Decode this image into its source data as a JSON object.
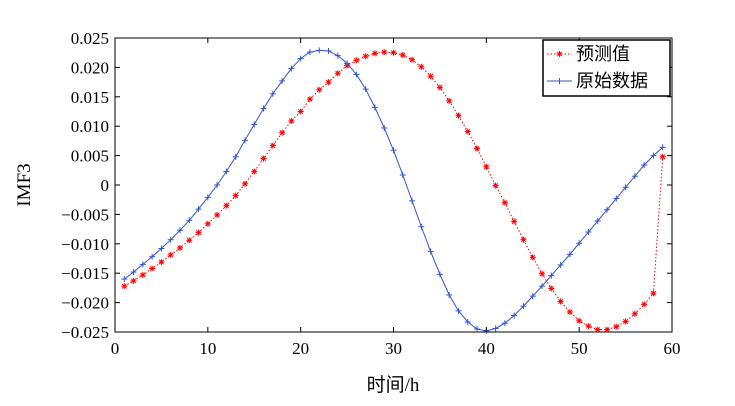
{
  "chart_data": {
    "type": "line",
    "xlabel": "时间/h",
    "ylabel": "IMF3",
    "xlim": [
      0,
      60
    ],
    "ylim": [
      -0.025,
      0.025
    ],
    "xticks": [
      0,
      10,
      20,
      30,
      40,
      50,
      60
    ],
    "xtick_labels": [
      "0",
      "10",
      "20",
      "30",
      "40",
      "50",
      "60"
    ],
    "yticks": [
      0.025,
      0.02,
      0.015,
      0.01,
      0.005,
      0,
      -0.005,
      -0.01,
      -0.015,
      -0.02,
      -0.025
    ],
    "ytick_labels": [
      "0.025",
      "0.020",
      "0.015",
      "0.010",
      "0.005",
      "0",
      "−0.005",
      "−0.010",
      "−0.015",
      "−0.020",
      "−0.025"
    ],
    "legend_position": "top-right",
    "grid": false,
    "series": [
      {
        "name": "预测值",
        "color": "#ff0000",
        "line_style": "dotted",
        "marker": "asterisk",
        "x": [
          1,
          2,
          3,
          4,
          5,
          6,
          7,
          8,
          9,
          10,
          11,
          12,
          13,
          14,
          15,
          16,
          17,
          18,
          19,
          20,
          21,
          22,
          23,
          24,
          25,
          26,
          27,
          28,
          29,
          30,
          31,
          32,
          33,
          34,
          35,
          36,
          37,
          38,
          39,
          40,
          41,
          42,
          43,
          44,
          45,
          46,
          47,
          48,
          49,
          50,
          51,
          52,
          53,
          54,
          55,
          56,
          57,
          58,
          59
        ],
        "values": [
          -0.0172,
          -0.0163,
          -0.0153,
          -0.0142,
          -0.0131,
          -0.0119,
          -0.0107,
          -0.0094,
          -0.0081,
          -0.0066,
          -0.0051,
          -0.0035,
          -0.0018,
          0.0002,
          0.0023,
          0.0045,
          0.0067,
          0.0089,
          0.0109,
          0.0125,
          0.0146,
          0.0162,
          0.0175,
          0.019,
          0.0203,
          0.0212,
          0.0219,
          0.0224,
          0.0226,
          0.0225,
          0.0221,
          0.0213,
          0.0201,
          0.0185,
          0.0166,
          0.0143,
          0.0118,
          0.0091,
          0.0062,
          0.0031,
          -0.0001,
          -0.003,
          -0.0062,
          -0.0093,
          -0.0123,
          -0.0151,
          -0.0176,
          -0.0198,
          -0.0216,
          -0.0231,
          -0.024,
          -0.0246,
          -0.0246,
          -0.0241,
          -0.0232,
          -0.0219,
          -0.0203,
          -0.0184,
          0.0048
        ]
      },
      {
        "name": "原始数据",
        "color": "#3355cc",
        "line_style": "solid",
        "marker": "plus",
        "x": [
          1,
          2,
          3,
          4,
          5,
          6,
          7,
          8,
          9,
          10,
          11,
          12,
          13,
          14,
          15,
          16,
          17,
          18,
          19,
          20,
          21,
          22,
          23,
          24,
          25,
          26,
          27,
          28,
          29,
          30,
          31,
          32,
          33,
          34,
          35,
          36,
          37,
          38,
          39,
          40,
          41,
          42,
          43,
          44,
          45,
          46,
          47,
          48,
          49,
          50,
          51,
          52,
          53,
          54,
          55,
          56,
          57,
          58,
          59
        ],
        "values": [
          -0.016,
          -0.0148,
          -0.0135,
          -0.0122,
          -0.0108,
          -0.0093,
          -0.0077,
          -0.006,
          -0.0041,
          -0.0021,
          0.0,
          0.0023,
          0.0048,
          0.0076,
          0.0103,
          0.013,
          0.0155,
          0.0177,
          0.0198,
          0.0215,
          0.0226,
          0.0229,
          0.0228,
          0.022,
          0.0207,
          0.0188,
          0.0163,
          0.0132,
          0.0097,
          0.0059,
          0.0017,
          -0.0027,
          -0.0071,
          -0.0113,
          -0.0152,
          -0.0187,
          -0.0214,
          -0.0233,
          -0.0245,
          -0.0248,
          -0.0244,
          -0.0235,
          -0.0222,
          -0.0206,
          -0.0189,
          -0.0172,
          -0.0154,
          -0.0136,
          -0.0118,
          -0.0099,
          -0.008,
          -0.0061,
          -0.0042,
          -0.0023,
          -0.0004,
          0.0015,
          0.0034,
          0.005,
          0.0064
        ]
      }
    ]
  }
}
